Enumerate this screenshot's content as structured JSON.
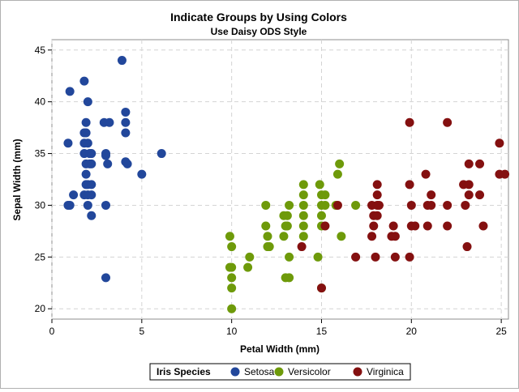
{
  "chart_data": {
    "type": "scatter",
    "title": "Indicate Groups by Using Colors",
    "subtitle": "Use Daisy ODS Style",
    "xlabel": "Petal Width (mm)",
    "ylabel": "Sepal Width (mm)",
    "xlim": [
      0,
      25.4
    ],
    "ylim": [
      19,
      46
    ],
    "xticks": [
      0,
      5,
      10,
      15,
      20,
      25
    ],
    "yticks": [
      20,
      25,
      30,
      35,
      40,
      45
    ],
    "grid": true,
    "legend": {
      "title": "Iris Species",
      "placement": "bottom-center"
    },
    "series": [
      {
        "name": "Setosa",
        "color": "#22479b",
        "points": [
          [
            1,
            41
          ],
          [
            0.9,
            36
          ],
          [
            0.9,
            30
          ],
          [
            1,
            30
          ],
          [
            1.2,
            31
          ],
          [
            3.9,
            44
          ],
          [
            1.8,
            42
          ],
          [
            2,
            40
          ],
          [
            1.9,
            38
          ],
          [
            2.9,
            38
          ],
          [
            3.2,
            38
          ],
          [
            4.1,
            39
          ],
          [
            4.1,
            38
          ],
          [
            4.1,
            37
          ],
          [
            1.8,
            37
          ],
          [
            1.9,
            37
          ],
          [
            1.8,
            36
          ],
          [
            2,
            36
          ],
          [
            1.8,
            35
          ],
          [
            2.1,
            35
          ],
          [
            2.2,
            35
          ],
          [
            3,
            35
          ],
          [
            3,
            34.8
          ],
          [
            6.1,
            35
          ],
          [
            1.9,
            34
          ],
          [
            2.1,
            34
          ],
          [
            2.2,
            34
          ],
          [
            3.1,
            34
          ],
          [
            4.2,
            34
          ],
          [
            4.1,
            34.2
          ],
          [
            5,
            33
          ],
          [
            1.9,
            33
          ],
          [
            1.9,
            32
          ],
          [
            2,
            32
          ],
          [
            2.2,
            32
          ],
          [
            1.8,
            31
          ],
          [
            2,
            31
          ],
          [
            2.2,
            31
          ],
          [
            2,
            30
          ],
          [
            3,
            30
          ],
          [
            2.2,
            29
          ],
          [
            3,
            23
          ]
        ]
      },
      {
        "name": "Versicolor",
        "color": "#6e9a0a",
        "points": [
          [
            10,
            20
          ],
          [
            10,
            22
          ],
          [
            10,
            23
          ],
          [
            9.9,
            24
          ],
          [
            10,
            24
          ],
          [
            10.9,
            24
          ],
          [
            10,
            26
          ],
          [
            9.9,
            27
          ],
          [
            11,
            25
          ],
          [
            13.2,
            25
          ],
          [
            14.8,
            25
          ],
          [
            12,
            26
          ],
          [
            12.1,
            26
          ],
          [
            12.9,
            27
          ],
          [
            12,
            27
          ],
          [
            14,
            27
          ],
          [
            16.1,
            27
          ],
          [
            11.9,
            28
          ],
          [
            13,
            28
          ],
          [
            13.1,
            28
          ],
          [
            14,
            28
          ],
          [
            15,
            28
          ],
          [
            12.9,
            29
          ],
          [
            13.1,
            29
          ],
          [
            14,
            29
          ],
          [
            15,
            29
          ],
          [
            11.9,
            30
          ],
          [
            13.2,
            30
          ],
          [
            14,
            30
          ],
          [
            15,
            30
          ],
          [
            15.2,
            30
          ],
          [
            15.8,
            30
          ],
          [
            16.9,
            30
          ],
          [
            14,
            31
          ],
          [
            15,
            31
          ],
          [
            15.2,
            31
          ],
          [
            14,
            32
          ],
          [
            14.9,
            32
          ],
          [
            15.9,
            33
          ],
          [
            16,
            34
          ],
          [
            13,
            23
          ],
          [
            13.2,
            23
          ],
          [
            15,
            22
          ]
        ]
      },
      {
        "name": "Virginica",
        "color": "#841010",
        "points": [
          [
            15,
            22
          ],
          [
            13.9,
            26
          ],
          [
            15.2,
            28
          ],
          [
            16.9,
            25
          ],
          [
            18,
            25
          ],
          [
            19.1,
            25
          ],
          [
            19.9,
            25
          ],
          [
            23.1,
            26
          ],
          [
            17.8,
            27
          ],
          [
            18.9,
            27
          ],
          [
            19.1,
            27
          ],
          [
            17.9,
            28
          ],
          [
            19,
            28
          ],
          [
            20,
            28
          ],
          [
            20.2,
            28
          ],
          [
            20.9,
            28
          ],
          [
            22,
            28
          ],
          [
            24,
            28
          ],
          [
            17.9,
            29
          ],
          [
            18.1,
            29
          ],
          [
            15.9,
            30
          ],
          [
            17.8,
            30
          ],
          [
            18.1,
            30
          ],
          [
            18.2,
            30
          ],
          [
            20,
            30
          ],
          [
            21.1,
            30
          ],
          [
            20.9,
            30
          ],
          [
            22,
            30
          ],
          [
            23,
            30
          ],
          [
            18.1,
            31
          ],
          [
            21.1,
            31
          ],
          [
            23.2,
            31
          ],
          [
            23.8,
            31
          ],
          [
            18.1,
            32
          ],
          [
            19.9,
            32
          ],
          [
            22.9,
            32
          ],
          [
            23.2,
            32
          ],
          [
            20.8,
            33
          ],
          [
            23.2,
            34
          ],
          [
            23.8,
            34
          ],
          [
            24.9,
            33
          ],
          [
            25.2,
            33
          ],
          [
            19.9,
            38
          ],
          [
            22,
            38
          ],
          [
            24.9,
            36
          ]
        ]
      }
    ]
  }
}
